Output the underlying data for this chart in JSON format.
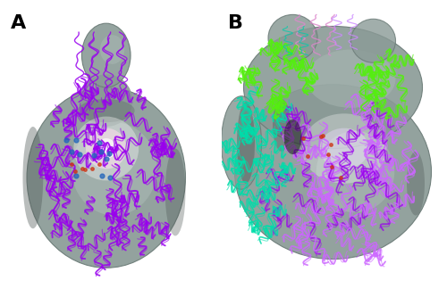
{
  "fig_width": 5.0,
  "fig_height": 3.33,
  "dpi": 100,
  "bg_color": "#ffffff",
  "panel_A_label": "A",
  "panel_B_label": "B",
  "label_fontsize": 16,
  "label_fontweight": "bold",
  "gray_body": "#8a9a96",
  "gray_light": "#b0bfbb",
  "gray_dark": "#505a58",
  "gray_edge": "#6a7a76",
  "gray_mid": "#708880",
  "purple_A": "#9900ee",
  "purple_B": "#aa44ff",
  "pink_A": "#ffaadd",
  "teal_B": "#00ddaa",
  "green_B": "#55ee11",
  "magenta_B": "#cc66ff",
  "white_glow": "#ffffff",
  "red_dot": "#cc2211",
  "blue_dot": "#224488",
  "teal_dark": "#008866"
}
